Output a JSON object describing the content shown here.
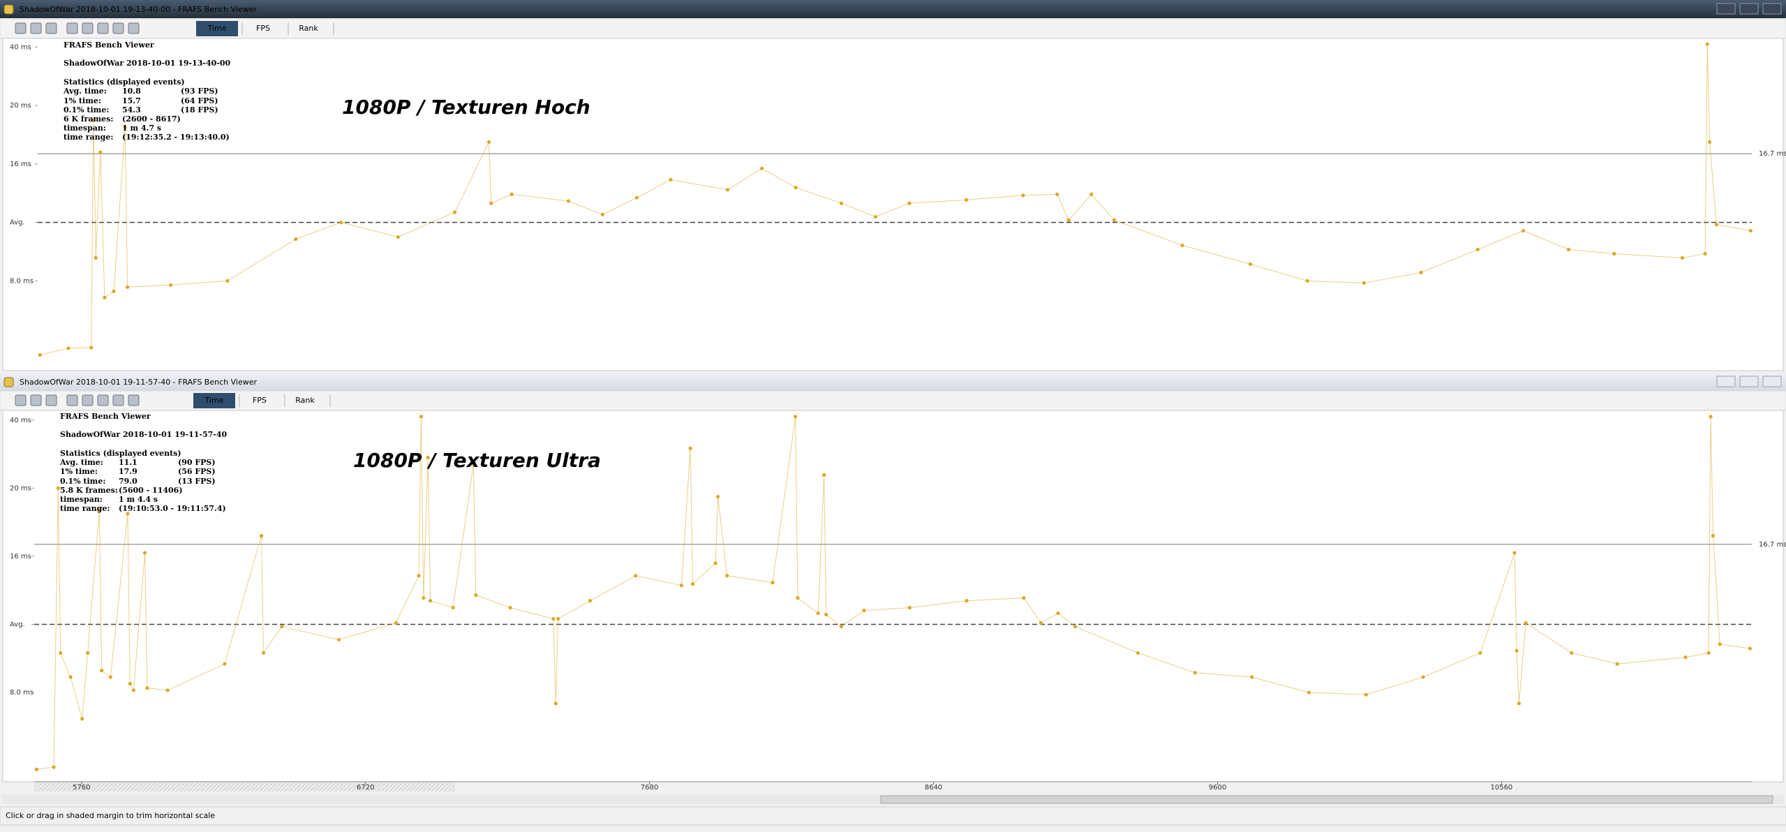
{
  "windows": [
    {
      "title": "ShadowOfWar 2018-10-01 19-13-40-00 - FRAFS Bench Viewer",
      "tabs": [
        "Time",
        "FPS",
        "Rank"
      ]
    },
    {
      "title": "ShadowOfWar 2018-10-01 19-11-57-40 - FRAFS Bench Viewer",
      "tabs": [
        "Time",
        "FPS",
        "Rank"
      ]
    }
  ],
  "status_bar": "Click or drag in shaded margin to trim horizontal scale",
  "chart_data": [
    {
      "type": "scatter",
      "title": "1080P / Texturen Hoch",
      "stats": {
        "app": "FRAFS Bench Viewer",
        "run": "ShadowOfWar 2018-10-01 19-13-40-00",
        "heading": "Statistics (displayed events)",
        "rows": [
          [
            "Avg. time:",
            "10.8",
            "(93 FPS)"
          ],
          [
            "1% time:",
            "15.7",
            "(64 FPS)"
          ],
          [
            "0.1% time:",
            "54.3",
            "(18 FPS)"
          ],
          [
            "6 K frames:",
            "(2600 - 8617)"
          ],
          [
            "timespan:",
            "1 m 4.7 s"
          ],
          [
            "time range:",
            "(19:12:35.2 - 19:13:40.0)"
          ]
        ]
      },
      "color": "#d9a826",
      "x": [
        2608,
        2708,
        2788,
        2796,
        2804,
        2820,
        2835,
        2867,
        2907,
        2915,
        3067,
        3266,
        3506,
        3665,
        3865,
        4064,
        4184,
        4192,
        4264,
        4463,
        4583,
        4703,
        4822,
        5022,
        5142,
        5261,
        5421,
        5541,
        5660,
        5860,
        6059,
        6179,
        6219,
        6299,
        6379,
        6618,
        6857,
        7057,
        7256,
        7456,
        7655,
        7815,
        7974,
        8134,
        8373,
        8453,
        8461,
        8469,
        8493,
        8613
      ],
      "values": [
        4.45,
        4.77,
        4.8,
        19.0,
        9.1,
        16.8,
        7.2,
        7.5,
        18.5,
        7.7,
        7.8,
        8.0,
        10.0,
        10.8,
        10.1,
        11.7,
        17.5,
        12.5,
        13.3,
        12.7,
        11.5,
        13.0,
        14.6,
        13.7,
        15.6,
        13.9,
        12.5,
        11.3,
        12.5,
        12.8,
        13.2,
        13.3,
        11.0,
        13.3,
        11.0,
        9.7,
        8.8,
        8.0,
        7.9,
        8.4,
        9.5,
        10.4,
        9.5,
        9.3,
        9.1,
        9.3,
        41.0,
        17.5,
        10.7,
        10.4
      ],
      "xlim": [
        2600,
        8617
      ],
      "ylim": [
        4,
        42
      ],
      "yticks": [
        {
          "value": 40,
          "label": "40 ms"
        },
        {
          "value": 20,
          "label": "20 ms"
        },
        {
          "value": 16,
          "label": "16 ms"
        },
        {
          "value": 10.8,
          "label": "Avg."
        },
        {
          "value": 8,
          "label": "8.0 ms"
        }
      ],
      "reference_lines": [
        {
          "value": 16.7,
          "label": "16.7 ms",
          "style": "solid"
        },
        {
          "value": 10.8,
          "style": "dashed"
        }
      ]
    },
    {
      "type": "scatter",
      "title": "1080P / Texturen Ultra",
      "stats": {
        "app": "FRAFS Bench Viewer",
        "run": "ShadowOfWar 2018-10-01 19-11-57-40",
        "heading": "Statistics (displayed events)",
        "rows": [
          [
            "Avg. time:",
            "11.1",
            "(90 FPS)"
          ],
          [
            "1% time:",
            "17.9",
            "(56 FPS)"
          ],
          [
            "0.1% time:",
            "79.0",
            "(13 FPS)"
          ],
          [
            "5.8 K frames:",
            "(5600 - 11406)"
          ],
          [
            "timespan:",
            "1 m 4.4 s"
          ],
          [
            "time range:",
            "(19:10:53.0 - 19:11:57.4)"
          ]
        ]
      },
      "color": "#d9a826",
      "x": [
        5608,
        5666,
        5681,
        5689,
        5723,
        5762,
        5781,
        5820,
        5828,
        5858,
        5916,
        5924,
        5936,
        5974,
        5982,
        6051,
        6244,
        6368,
        6375,
        6437,
        6630,
        6823,
        6900,
        6908,
        6916,
        6931,
        6939,
        7016,
        7085,
        7093,
        7209,
        7355,
        7363,
        7371,
        7479,
        7633,
        7788,
        7818,
        7826,
        7903,
        7911,
        7942,
        8096,
        8173,
        8181,
        8250,
        8270,
        8277,
        8328,
        8405,
        8559,
        8752,
        8945,
        9003,
        9061,
        9119,
        9331,
        9524,
        9716,
        9909,
        10102,
        10295,
        10488,
        10604,
        10611,
        10619,
        10642,
        10797,
        10951,
        11182,
        11260,
        11267,
        11275,
        11298,
        11400
      ],
      "values": [
        4.5,
        4.6,
        20.0,
        9.8,
        8.7,
        6.8,
        9.8,
        18.7,
        9.0,
        8.7,
        18.5,
        8.4,
        8.1,
        16.2,
        8.2,
        8.1,
        9.3,
        17.2,
        9.8,
        11.0,
        10.4,
        11.2,
        14.6,
        41.0,
        13.0,
        29.0,
        12.8,
        12.3,
        27.0,
        13.2,
        12.3,
        11.5,
        7.5,
        11.5,
        12.8,
        14.6,
        13.9,
        31.7,
        14.0,
        15.5,
        19.5,
        14.6,
        14.1,
        41.0,
        13.0,
        11.9,
        23.9,
        11.8,
        11.0,
        12.1,
        12.3,
        12.8,
        13.0,
        11.2,
        11.9,
        11.0,
        9.8,
        8.9,
        8.7,
        8.0,
        7.9,
        8.7,
        9.8,
        16.2,
        9.9,
        7.5,
        11.2,
        9.8,
        9.3,
        9.6,
        9.8,
        41.0,
        17.2,
        10.2,
        10.0
      ],
      "xlim": [
        5600,
        11406
      ],
      "ylim": [
        4,
        42
      ],
      "xticks": [
        5760,
        6720,
        7680,
        8640,
        9600,
        10560
      ],
      "yticks": [
        {
          "value": 40,
          "label": "40 ms"
        },
        {
          "value": 20,
          "label": "20 ms"
        },
        {
          "value": 16,
          "label": "16 ms"
        },
        {
          "value": 11.1,
          "label": "Avg."
        },
        {
          "value": 8,
          "label": "8.0 ms"
        }
      ],
      "reference_lines": [
        {
          "value": 16.7,
          "label": "16.7 ms",
          "style": "solid"
        },
        {
          "value": 11.1,
          "style": "dashed"
        }
      ]
    }
  ]
}
